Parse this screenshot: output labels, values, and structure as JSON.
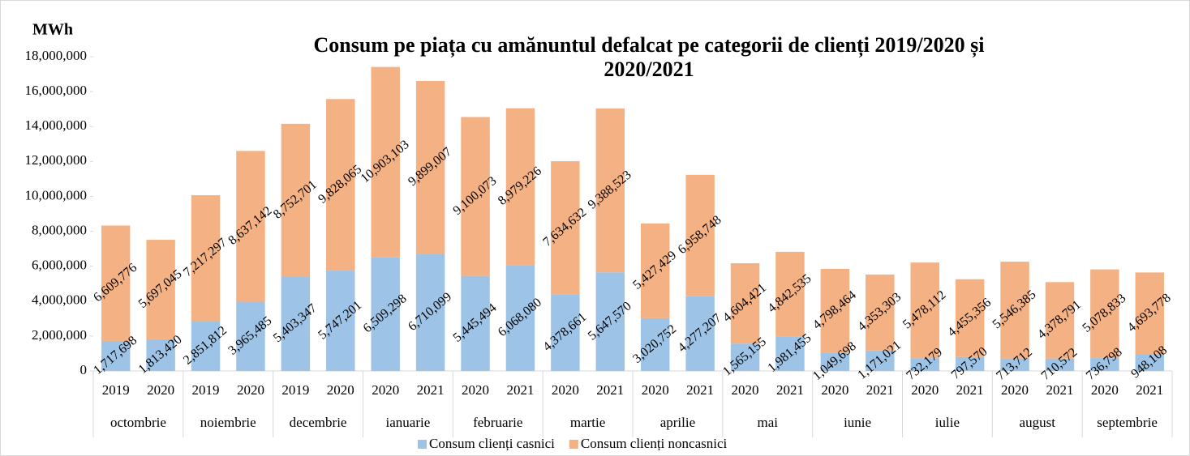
{
  "chart_data": {
    "type": "stacked_bar",
    "title": "Consum pe piața cu amănuntul defalcat pe categorii de clienți 2019/2020 și 2020/2021",
    "y_axis_label": "MWh",
    "categories": [
      "2019",
      "2020",
      "2019",
      "2020",
      "2019",
      "2020",
      "2020",
      "2021",
      "2020",
      "2021",
      "2020",
      "2021",
      "2020",
      "2021",
      "2020",
      "2021",
      "2020",
      "2021",
      "2020",
      "2021",
      "2020",
      "2021",
      "2020",
      "2021"
    ],
    "groups": [
      "octombrie",
      "noiembrie",
      "decembrie",
      "ianuarie",
      "februarie",
      "martie",
      "aprilie",
      "mai",
      "iunie",
      "iulie",
      "august",
      "septembrie"
    ],
    "series": [
      {
        "name": "Consum clienți casnici",
        "color": "#9dc3e6",
        "values": [
          1717698,
          1813420,
          2851812,
          3965485,
          5403347,
          5747201,
          6509298,
          6710099,
          5445494,
          6068080,
          4378661,
          5647570,
          3020752,
          4277207,
          1565155,
          1981455,
          1049698,
          1171021,
          732179,
          797570,
          713712,
          710572,
          736798,
          948108
        ],
        "value_labels": [
          "1,717,698",
          "1,813,420",
          "2,851,812",
          "3,965,485",
          "5,403,347",
          "5,747,201",
          "6,509,298",
          "6,710,099",
          "5,445,494",
          "6,068,080",
          "4,378,661",
          "5,647,570",
          "3,020,752",
          "4,277,207",
          "1,565,155",
          "1,981,455",
          "1,049,698",
          "1,171,021",
          "732,179",
          "797,570",
          "713,712",
          "710,572",
          "736,798",
          "948,108"
        ]
      },
      {
        "name": "Consum clienți noncasnici",
        "color": "#f4b183",
        "values": [
          6609776,
          5697045,
          7217297,
          8637142,
          8752701,
          9828065,
          10903103,
          9899007,
          9100073,
          8979226,
          7634632,
          9388523,
          5427429,
          6958748,
          4604421,
          4842535,
          4798464,
          4353303,
          5478112,
          4455356,
          5546385,
          4378791,
          5078833,
          4693778
        ],
        "value_labels": [
          "6,609,776",
          "5,697,045",
          "7,217,297",
          "8,637,142",
          "8,752,701",
          "9,828,065",
          "10,903,103",
          "9,899,007",
          "9,100,073",
          "8,979,226",
          "7,634,632",
          "9,388,523",
          "5,427,429",
          "6,958,748",
          "4,604,421",
          "4,842,535",
          "4,798,464",
          "4,353,303",
          "5,478,112",
          "4,455,356",
          "5,546,385",
          "4,378,791",
          "5,078,833",
          "4,693,778"
        ]
      }
    ],
    "ylim": [
      0,
      18000000
    ],
    "yticks": [
      0,
      {
        "value": 2000000,
        "label": "2,000,000"
      },
      {
        "value": 4000000,
        "label": "4,000,000"
      },
      {
        "value": 6000000,
        "label": "6,000,000"
      },
      {
        "value": 8000000,
        "label": "8,000,000"
      },
      {
        "value": 10000000,
        "label": "10,000,000"
      },
      {
        "value": 12000000,
        "label": "12,000,000"
      },
      {
        "value": 14000000,
        "label": "14,000,000"
      },
      {
        "value": 16000000,
        "label": "16,000,000"
      },
      {
        "value": 18000000,
        "label": "18,000,000"
      }
    ],
    "legend": "bottom"
  }
}
